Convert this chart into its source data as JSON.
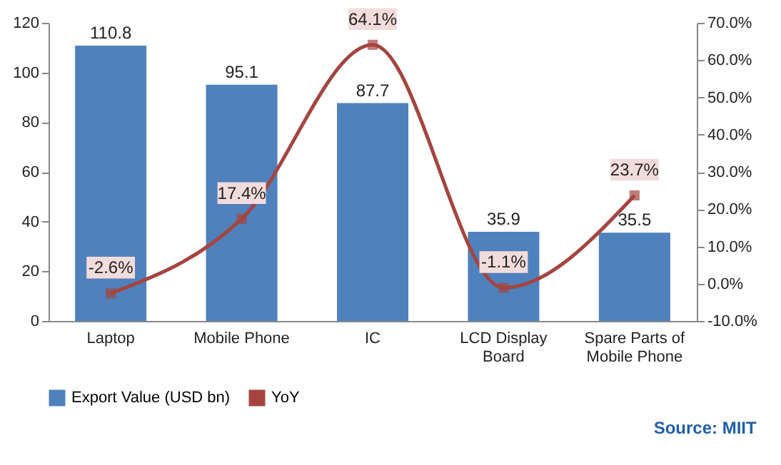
{
  "chart_data": {
    "type": "bar",
    "categories": [
      "Laptop",
      "Mobile Phone",
      "IC",
      "LCD Display Board",
      "Spare Parts of Mobile Phone"
    ],
    "series": [
      {
        "name": "Export Value (USD bn)",
        "color": "#4f81bd",
        "values": [
          110.8,
          95.1,
          87.7,
          35.9,
          35.5
        ]
      },
      {
        "name": "YoY",
        "type": "line",
        "axis": "y2",
        "color": "#a5443f",
        "values": [
          -2.6,
          17.4,
          64.1,
          -1.1,
          23.7
        ],
        "value_labels": [
          "-2.6%",
          "17.4%",
          "64.1%",
          "-1.1%",
          "23.7%"
        ]
      }
    ],
    "ylim": [
      0,
      120
    ],
    "yticks": [
      0,
      20,
      40,
      60,
      80,
      100,
      120
    ],
    "y2lim": [
      -10,
      70
    ],
    "y2ticks": [
      {
        "value": -10,
        "label": "-10.0%"
      },
      {
        "value": 0,
        "label": "0.0%"
      },
      {
        "value": 10,
        "label": "10.0%"
      },
      {
        "value": 20,
        "label": "20.0%"
      },
      {
        "value": 30,
        "label": "30.0%"
      },
      {
        "value": 40,
        "label": "40.0%"
      },
      {
        "value": 50,
        "label": "50.0%"
      },
      {
        "value": 60,
        "label": "60.0%"
      },
      {
        "value": 70,
        "label": "70.0%"
      }
    ],
    "data_labels": true,
    "legend": "bottom",
    "marker": "square",
    "grid": false,
    "annotations": [
      "Source: MIIT"
    ]
  }
}
